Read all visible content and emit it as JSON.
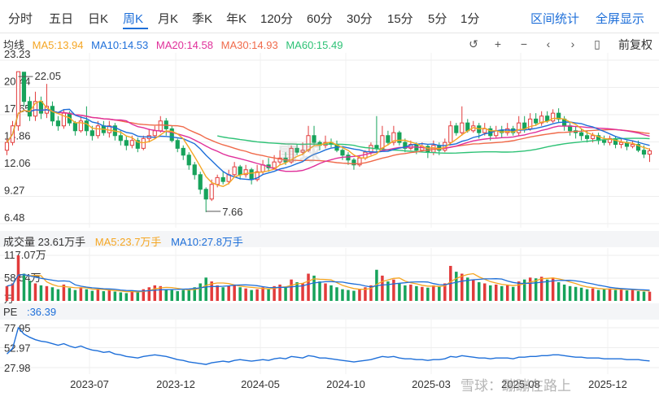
{
  "tabs": [
    {
      "label": "分时",
      "active": false
    },
    {
      "label": "五日",
      "active": false
    },
    {
      "label": "日K",
      "active": false
    },
    {
      "label": "周K",
      "active": true
    },
    {
      "label": "月K",
      "active": false
    },
    {
      "label": "季K",
      "active": false
    },
    {
      "label": "年K",
      "active": false
    },
    {
      "label": "120分",
      "active": false
    },
    {
      "label": "60分",
      "active": false
    },
    {
      "label": "30分",
      "active": false
    },
    {
      "label": "15分",
      "active": false
    },
    {
      "label": "5分",
      "active": false
    },
    {
      "label": "1分",
      "active": false
    }
  ],
  "header_right": {
    "interval_stats": "区间统计",
    "fullscreen": "全屏显示"
  },
  "ma_legend": {
    "title": "均线",
    "items": [
      {
        "label": "MA5:13.94",
        "color": "#f5a623"
      },
      {
        "label": "MA10:14.53",
        "color": "#1e6fd9"
      },
      {
        "label": "MA20:14.58",
        "color": "#e0309a"
      },
      {
        "label": "MA30:14.93",
        "color": "#f06a4a"
      },
      {
        "label": "MA60:15.49",
        "color": "#2ec276"
      }
    ]
  },
  "controls": {
    "undo": "↺",
    "zoom_in": "+",
    "zoom_out": "−",
    "prev": "‹",
    "next": "›",
    "candle": "▯",
    "adjust": "前复权"
  },
  "volume_legend": {
    "title": "成交量 23.61万手",
    "ma5": "MA5:23.7万手",
    "ma10": "MA10:27.8万手",
    "y_ticks": [
      "117.07万",
      "58.54万"
    ],
    "y_tick_values": [
      117.07,
      58.54
    ],
    "bottom_tick": "万"
  },
  "pe_legend": {
    "title": "PE",
    "value": ":36.39",
    "y_ticks": [
      "77.95",
      "52.97",
      "27.98"
    ],
    "y_tick_values": [
      77.95,
      52.97,
      27.98
    ]
  },
  "colors": {
    "up": "#e23b3b",
    "down": "#17a35b",
    "ma5": "#f5a623",
    "ma10": "#1e6fd9",
    "ma20": "#e0309a",
    "ma30": "#f06a4a",
    "ma60": "#2ec276",
    "pe": "#1e6fd9"
  },
  "watermark": {
    "text": "雪球：蹦蹦在路上",
    "logo": "雪球"
  },
  "chart_data": {
    "type": "candlestick",
    "price_y_ticks": [
      "23.23",
      "20.44",
      "17.65",
      "14.86",
      "12.06",
      "9.27",
      "6.48"
    ],
    "price_y_values": [
      23.23,
      20.44,
      17.65,
      14.86,
      12.06,
      9.27,
      6.48
    ],
    "x_tick_labels": [
      "2023-07",
      "2023-12",
      "2024-05",
      "2024-10",
      "2025-03",
      "2025-08",
      "2025-12"
    ],
    "high_annotation": "22.05",
    "low_annotation": "7.66",
    "high_value": 22.05,
    "low_value": 7.66,
    "ma_last": {
      "ma5": 13.94,
      "ma10": 14.53,
      "ma20": 14.58,
      "ma30": 14.93,
      "ma60": 15.49
    },
    "candles": [
      [
        14.0,
        14.8,
        13.5,
        15.2
      ],
      [
        14.8,
        16.5,
        14.5,
        17.0
      ],
      [
        16.5,
        22.05,
        16.0,
        22.05
      ],
      [
        22.0,
        19.0,
        18.5,
        22.0
      ],
      [
        19.0,
        17.5,
        17.0,
        19.5
      ],
      [
        17.5,
        19.0,
        17.0,
        20.0
      ],
      [
        19.0,
        17.8,
        17.2,
        19.5
      ],
      [
        17.8,
        18.5,
        17.3,
        20.8
      ],
      [
        18.5,
        17.0,
        16.5,
        19.0
      ],
      [
        17.0,
        16.5,
        16.0,
        17.5
      ],
      [
        16.5,
        17.8,
        16.2,
        18.2
      ],
      [
        17.8,
        16.8,
        16.5,
        18.0
      ],
      [
        16.8,
        16.0,
        15.5,
        17.0
      ],
      [
        16.0,
        17.0,
        15.8,
        17.5
      ],
      [
        17.0,
        16.0,
        15.5,
        18.5
      ],
      [
        16.0,
        15.5,
        15.0,
        16.5
      ],
      [
        15.5,
        16.5,
        15.2,
        17.0
      ],
      [
        16.5,
        15.8,
        15.5,
        17.0
      ],
      [
        15.8,
        16.5,
        15.3,
        17.0
      ],
      [
        16.5,
        15.5,
        15.0,
        16.8
      ],
      [
        15.5,
        15.0,
        14.5,
        16.0
      ],
      [
        15.0,
        14.5,
        14.0,
        15.5
      ],
      [
        14.5,
        15.0,
        14.2,
        15.5
      ],
      [
        15.0,
        14.2,
        13.8,
        15.3
      ],
      [
        14.2,
        15.2,
        14.0,
        15.5
      ],
      [
        15.2,
        15.5,
        14.8,
        16.2
      ],
      [
        15.5,
        16.0,
        15.2,
        16.5
      ],
      [
        16.0,
        17.0,
        15.8,
        17.5
      ],
      [
        17.0,
        16.2,
        15.5,
        17.3
      ],
      [
        16.2,
        15.0,
        14.8,
        16.5
      ],
      [
        15.0,
        14.2,
        13.8,
        15.2
      ],
      [
        14.2,
        13.5,
        13.0,
        14.5
      ],
      [
        13.5,
        12.5,
        12.0,
        13.8
      ],
      [
        12.5,
        11.5,
        11.0,
        12.8
      ],
      [
        11.5,
        10.0,
        9.5,
        11.8
      ],
      [
        10.0,
        9.0,
        7.66,
        10.2
      ],
      [
        9.0,
        10.5,
        8.8,
        11.0
      ],
      [
        10.5,
        11.2,
        10.2,
        11.5
      ],
      [
        11.2,
        10.8,
        10.5,
        11.8
      ],
      [
        10.8,
        11.5,
        10.5,
        12.0
      ],
      [
        11.5,
        12.3,
        11.2,
        12.8
      ],
      [
        12.3,
        11.5,
        11.0,
        12.5
      ],
      [
        11.5,
        12.0,
        11.2,
        12.5
      ],
      [
        12.0,
        11.0,
        10.5,
        12.2
      ],
      [
        11.0,
        11.8,
        10.8,
        12.5
      ],
      [
        11.8,
        12.5,
        11.5,
        13.0
      ],
      [
        12.5,
        12.2,
        11.8,
        13.2
      ],
      [
        12.2,
        12.8,
        12.0,
        13.5
      ],
      [
        12.8,
        13.2,
        12.5,
        14.0
      ],
      [
        13.2,
        12.8,
        12.5,
        13.8
      ],
      [
        12.8,
        14.2,
        12.6,
        14.5
      ],
      [
        14.2,
        13.8,
        13.5,
        14.6
      ],
      [
        13.8,
        14.0,
        13.5,
        14.8
      ],
      [
        14.0,
        15.5,
        13.8,
        16.5
      ],
      [
        15.5,
        14.8,
        14.5,
        16.5
      ],
      [
        14.8,
        14.5,
        14.0,
        15.0
      ],
      [
        14.5,
        14.8,
        14.2,
        15.5
      ],
      [
        14.8,
        14.6,
        14.3,
        15.2
      ],
      [
        14.6,
        14.0,
        13.8,
        15.0
      ],
      [
        14.0,
        13.5,
        13.0,
        14.2
      ],
      [
        13.5,
        13.0,
        12.5,
        13.8
      ],
      [
        13.0,
        12.5,
        12.0,
        13.2
      ],
      [
        12.5,
        13.2,
        12.3,
        13.5
      ],
      [
        13.2,
        13.8,
        13.0,
        14.0
      ],
      [
        13.8,
        14.5,
        13.5,
        14.8
      ],
      [
        14.5,
        14.2,
        13.8,
        17.5
      ],
      [
        14.2,
        15.5,
        14.0,
        16.5
      ],
      [
        15.5,
        14.8,
        14.5,
        16.0
      ],
      [
        14.8,
        15.8,
        14.5,
        16.5
      ],
      [
        15.8,
        14.8,
        14.5,
        16.0
      ],
      [
        14.8,
        14.2,
        13.8,
        15.2
      ],
      [
        14.2,
        14.6,
        14.0,
        15.0
      ],
      [
        14.6,
        14.0,
        13.6,
        14.8
      ],
      [
        14.0,
        14.4,
        13.8,
        14.8
      ],
      [
        14.4,
        13.8,
        13.2,
        14.6
      ],
      [
        13.8,
        14.5,
        13.5,
        15.0
      ],
      [
        14.5,
        14.0,
        13.5,
        14.8
      ],
      [
        14.0,
        14.8,
        13.8,
        15.2
      ],
      [
        14.8,
        16.5,
        14.5,
        17.0
      ],
      [
        16.5,
        15.8,
        15.5,
        16.8
      ],
      [
        15.8,
        16.8,
        15.5,
        18.5
      ],
      [
        16.8,
        16.0,
        15.8,
        17.2
      ],
      [
        16.0,
        16.5,
        15.8,
        17.0
      ],
      [
        16.5,
        15.8,
        15.2,
        16.8
      ],
      [
        15.8,
        16.2,
        15.5,
        16.8
      ],
      [
        16.2,
        15.5,
        15.0,
        16.5
      ],
      [
        15.5,
        16.0,
        15.2,
        16.5
      ],
      [
        16.0,
        15.8,
        15.3,
        16.5
      ],
      [
        15.8,
        16.2,
        15.5,
        16.8
      ],
      [
        16.2,
        15.8,
        15.5,
        16.5
      ],
      [
        15.8,
        16.8,
        15.5,
        17.5
      ],
      [
        16.8,
        16.2,
        15.8,
        17.5
      ],
      [
        16.2,
        17.2,
        16.0,
        17.8
      ],
      [
        17.2,
        16.8,
        16.5,
        17.8
      ],
      [
        16.8,
        17.5,
        16.5,
        18.0
      ],
      [
        17.5,
        17.0,
        16.8,
        18.0
      ],
      [
        17.0,
        17.8,
        16.8,
        18.2
      ],
      [
        17.8,
        17.2,
        16.8,
        18.3
      ],
      [
        17.2,
        16.5,
        16.0,
        17.5
      ],
      [
        16.5,
        16.0,
        15.5,
        16.8
      ],
      [
        16.0,
        15.8,
        15.2,
        16.5
      ],
      [
        15.8,
        15.5,
        15.0,
        16.2
      ],
      [
        15.5,
        15.2,
        14.8,
        16.0
      ],
      [
        15.2,
        15.5,
        14.8,
        15.8
      ],
      [
        15.5,
        15.0,
        14.6,
        15.8
      ],
      [
        15.0,
        14.8,
        14.5,
        15.5
      ],
      [
        14.8,
        15.2,
        14.5,
        15.5
      ],
      [
        15.2,
        14.6,
        14.2,
        15.4
      ],
      [
        14.6,
        14.8,
        14.2,
        15.2
      ],
      [
        14.8,
        14.4,
        14.0,
        15.0
      ],
      [
        14.4,
        14.6,
        14.2,
        15.0
      ],
      [
        14.6,
        14.0,
        13.8,
        15.0
      ],
      [
        14.0,
        13.6,
        13.2,
        14.5
      ],
      [
        13.6,
        13.94,
        12.8,
        14.2
      ]
    ],
    "volume": [
      38,
      45,
      117,
      70,
      52,
      45,
      40,
      38,
      35,
      30,
      42,
      33,
      28,
      35,
      30,
      26,
      30,
      25,
      28,
      24,
      22,
      20,
      25,
      24,
      30,
      35,
      40,
      38,
      30,
      28,
      25,
      28,
      30,
      35,
      45,
      60,
      50,
      40,
      35,
      38,
      42,
      35,
      32,
      28,
      30,
      35,
      30,
      38,
      42,
      36,
      55,
      48,
      45,
      70,
      65,
      50,
      45,
      40,
      35,
      30,
      28,
      26,
      30,
      35,
      40,
      80,
      65,
      50,
      55,
      45,
      40,
      42,
      38,
      36,
      34,
      40,
      38,
      45,
      90,
      75,
      70,
      60,
      55,
      48,
      45,
      40,
      42,
      38,
      40,
      36,
      50,
      55,
      60,
      58,
      62,
      55,
      60,
      48,
      42,
      38,
      36,
      34,
      30,
      32,
      28,
      30,
      32,
      28,
      30,
      27,
      28,
      25,
      24,
      23.61
    ],
    "pe": [
      45,
      52,
      78,
      70,
      66,
      63,
      61,
      60,
      58,
      56,
      58,
      55,
      53,
      55,
      52,
      50,
      49,
      47,
      48,
      45,
      44,
      42,
      41,
      40,
      42,
      43,
      44,
      43,
      42,
      40,
      38,
      37,
      35,
      34,
      33,
      32,
      34,
      35,
      36,
      35,
      37,
      38,
      37,
      36,
      37,
      38,
      37,
      39,
      40,
      39,
      42,
      41,
      40,
      43,
      42,
      40,
      40,
      39,
      38,
      37,
      36,
      35,
      36,
      37,
      38,
      40,
      42,
      41,
      42,
      40,
      39,
      39,
      38,
      38,
      37,
      38,
      38,
      39,
      42,
      41,
      43,
      42,
      41,
      40,
      40,
      39,
      40,
      40,
      40,
      39,
      41,
      41,
      42,
      42,
      43,
      43,
      44,
      44,
      43,
      42,
      41,
      41,
      40,
      40,
      40,
      39,
      39,
      39,
      39,
      38,
      38,
      38,
      37,
      36.39
    ]
  }
}
